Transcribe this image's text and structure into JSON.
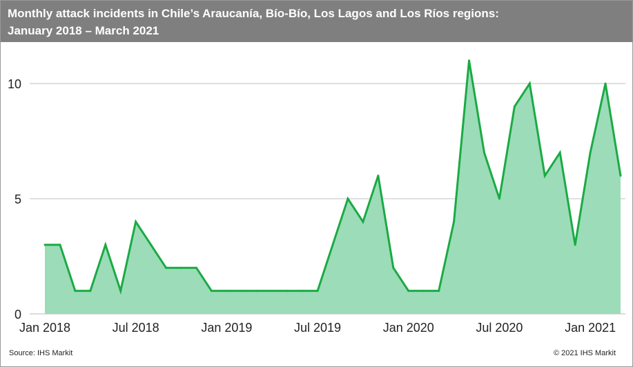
{
  "title_lines": [
    "Monthly attack incidents in Chile’s Araucanía, Bío-Bío, Los Lagos and Los Ríos regions:",
    "January 2018 – March 2021"
  ],
  "source": "Source: IHS Markit",
  "copyright": "© 2021 IHS Markit",
  "chart_data": {
    "type": "area",
    "title": "Monthly attack incidents in Chile’s Araucanía, Bío-Bío, Los Lagos and Los Ríos regions: January 2018 – March 2021",
    "x_start": "2018-01",
    "x_end": "2021-03",
    "x": [
      "2018-01",
      "2018-02",
      "2018-03",
      "2018-04",
      "2018-05",
      "2018-06",
      "2018-07",
      "2018-08",
      "2018-09",
      "2018-10",
      "2018-11",
      "2018-12",
      "2019-01",
      "2019-02",
      "2019-03",
      "2019-04",
      "2019-05",
      "2019-06",
      "2019-07",
      "2019-08",
      "2019-09",
      "2019-10",
      "2019-11",
      "2019-12",
      "2020-01",
      "2020-02",
      "2020-03",
      "2020-04",
      "2020-05",
      "2020-06",
      "2020-07",
      "2020-08",
      "2020-09",
      "2020-10",
      "2020-11",
      "2020-12",
      "2021-01",
      "2021-02",
      "2021-03"
    ],
    "values": [
      3,
      3,
      1,
      1,
      3,
      1,
      4,
      3,
      2,
      2,
      2,
      1,
      1,
      1,
      1,
      1,
      1,
      1,
      1,
      3,
      5,
      4,
      6,
      2,
      1,
      1,
      1,
      4,
      11,
      7,
      5,
      9,
      10,
      6,
      7,
      3,
      7,
      10,
      6
    ],
    "x_ticks": [
      {
        "label": "Jan 2018",
        "date": "2018-01"
      },
      {
        "label": "Jul 2018",
        "date": "2018-07"
      },
      {
        "label": "Jan 2019",
        "date": "2019-01"
      },
      {
        "label": "Jul 2019",
        "date": "2019-07"
      },
      {
        "label": "Jan 2020",
        "date": "2020-01"
      },
      {
        "label": "Jul 2020",
        "date": "2020-07"
      },
      {
        "label": "Jan 2021",
        "date": "2021-01"
      }
    ],
    "y_ticks": [
      0,
      5,
      10
    ],
    "ylim": [
      0,
      11.8
    ],
    "grid": true,
    "legend": "none",
    "line_color": "#1aaa44",
    "fill_color": "#9cdcb8",
    "grid_color": "#c8c8c8"
  }
}
